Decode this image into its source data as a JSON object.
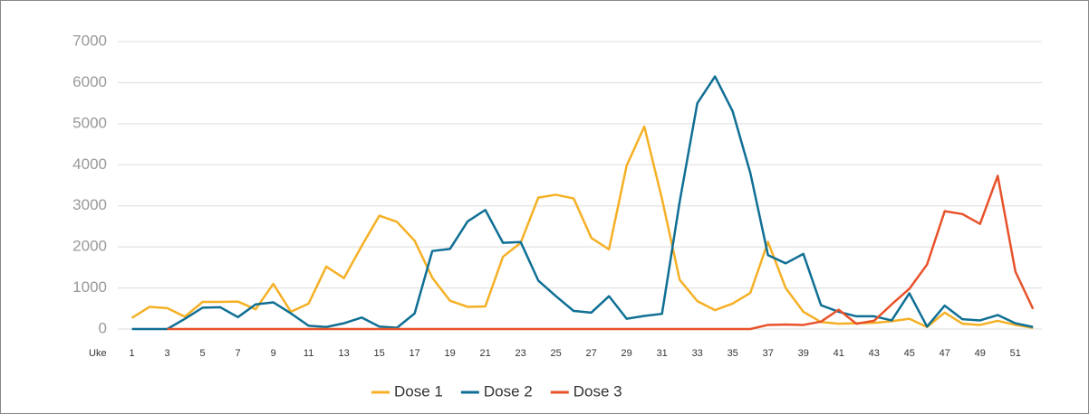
{
  "chart_data": {
    "type": "line",
    "x_label": "Uke",
    "x": [
      1,
      2,
      3,
      4,
      5,
      6,
      7,
      8,
      9,
      10,
      11,
      12,
      13,
      14,
      15,
      16,
      17,
      18,
      19,
      20,
      21,
      22,
      23,
      24,
      25,
      26,
      27,
      28,
      29,
      30,
      31,
      32,
      33,
      34,
      35,
      36,
      37,
      38,
      39,
      40,
      41,
      42,
      43,
      44,
      45,
      46,
      47,
      48,
      49,
      50,
      51,
      52
    ],
    "xlim": [
      0.2,
      52.5
    ],
    "xticks": [
      1,
      3,
      5,
      7,
      9,
      11,
      13,
      15,
      17,
      19,
      21,
      23,
      25,
      27,
      29,
      31,
      33,
      35,
      37,
      39,
      41,
      43,
      45,
      47,
      49,
      51
    ],
    "ylim": [
      0,
      7000
    ],
    "yticks": [
      0,
      1000,
      2000,
      3000,
      4000,
      5000,
      6000,
      7000
    ],
    "grid": true,
    "legend": "bottom",
    "series": [
      {
        "name": "Dose 1",
        "color": "#f5b025",
        "values": [
          270,
          540,
          510,
          300,
          660,
          660,
          670,
          480,
          1100,
          420,
          620,
          1520,
          1240,
          2020,
          2760,
          2610,
          2150,
          1250,
          690,
          540,
          550,
          1760,
          2100,
          3200,
          3270,
          3180,
          2220,
          1940,
          3980,
          4930,
          3170,
          1200,
          680,
          460,
          620,
          880,
          2120,
          1000,
          420,
          170,
          130,
          140,
          150,
          190,
          250,
          50,
          400,
          130,
          100,
          200,
          100,
          30
        ]
      },
      {
        "name": "Dose 2",
        "color": "#0f6f94",
        "values": [
          0,
          0,
          0,
          250,
          520,
          530,
          290,
          600,
          650,
          380,
          80,
          50,
          140,
          280,
          60,
          30,
          380,
          1900,
          1950,
          2620,
          2900,
          2100,
          2120,
          1180,
          800,
          440,
          400,
          800,
          250,
          320,
          370,
          3100,
          5500,
          6150,
          5300,
          3800,
          1800,
          1600,
          1830,
          580,
          420,
          310,
          310,
          210,
          870,
          60,
          570,
          240,
          210,
          340,
          140,
          50
        ]
      },
      {
        "name": "Dose 3",
        "color": "#e8522a",
        "values": [
          null,
          null,
          0,
          0,
          0,
          0,
          0,
          0,
          0,
          0,
          0,
          0,
          0,
          0,
          0,
          0,
          0,
          0,
          0,
          0,
          0,
          0,
          0,
          0,
          0,
          0,
          0,
          0,
          0,
          0,
          0,
          0,
          0,
          0,
          0,
          0,
          100,
          110,
          100,
          180,
          470,
          130,
          200,
          600,
          980,
          1570,
          2870,
          2800,
          2560,
          3730,
          1400,
          490
        ]
      }
    ]
  }
}
